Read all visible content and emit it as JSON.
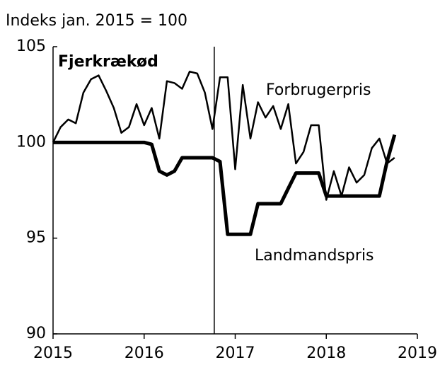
{
  "chart_data": {
    "type": "line",
    "title": "Fjerkrækød",
    "y_label": "Indeks jan. 2015 = 100",
    "x": [
      2015,
      2015.083,
      2015.167,
      2015.25,
      2015.333,
      2015.417,
      2015.5,
      2015.583,
      2015.667,
      2015.75,
      2015.833,
      2015.917,
      2016,
      2016.083,
      2016.167,
      2016.25,
      2016.333,
      2016.417,
      2016.5,
      2016.583,
      2016.667,
      2016.75,
      2016.833,
      2016.917,
      2017,
      2017.083,
      2017.167,
      2017.25,
      2017.333,
      2017.417,
      2017.5,
      2017.583,
      2017.667,
      2017.75,
      2017.833,
      2017.917,
      2018,
      2018.083,
      2018.167,
      2018.25,
      2018.333,
      2018.417,
      2018.5,
      2018.583,
      2018.667,
      2018.75
    ],
    "series": [
      {
        "name": "Forbrugerpris",
        "color": "#000000",
        "width": 2.5,
        "values": [
          100.0,
          100.8,
          101.2,
          101.0,
          102.6,
          103.3,
          103.5,
          102.7,
          101.8,
          100.5,
          100.8,
          102.0,
          100.9,
          101.8,
          100.2,
          103.2,
          103.1,
          102.8,
          103.7,
          103.6,
          102.6,
          100.7,
          103.4,
          103.4,
          98.6,
          103.0,
          100.2,
          102.1,
          101.3,
          101.9,
          100.7,
          102.0,
          98.9,
          99.5,
          100.9,
          100.9,
          97.0,
          98.5,
          97.2,
          98.7,
          97.9,
          98.3,
          99.7,
          100.2,
          98.9,
          99.2
        ]
      },
      {
        "name": "Landmandspris",
        "color": "#000000",
        "width": 5,
        "values": [
          100.0,
          100.0,
          100.0,
          100.0,
          100.0,
          100.0,
          100.0,
          100.0,
          100.0,
          100.0,
          100.0,
          100.0,
          100.0,
          99.9,
          98.5,
          98.3,
          98.5,
          99.2,
          99.2,
          99.2,
          99.2,
          99.2,
          99.0,
          95.2,
          95.2,
          95.2,
          95.2,
          96.8,
          96.8,
          96.8,
          96.8,
          97.6,
          98.4,
          98.4,
          98.4,
          98.4,
          97.2,
          97.2,
          97.2,
          97.2,
          97.2,
          97.2,
          97.2,
          97.2,
          99.0,
          100.4
        ]
      }
    ],
    "vline": 2016.77,
    "xlim": [
      2015,
      2019
    ],
    "xticks": [
      2015,
      2016,
      2017,
      2018,
      2019
    ],
    "ylim": [
      90,
      105
    ],
    "yticks": [
      90,
      95,
      100,
      105
    ],
    "grid": false
  }
}
